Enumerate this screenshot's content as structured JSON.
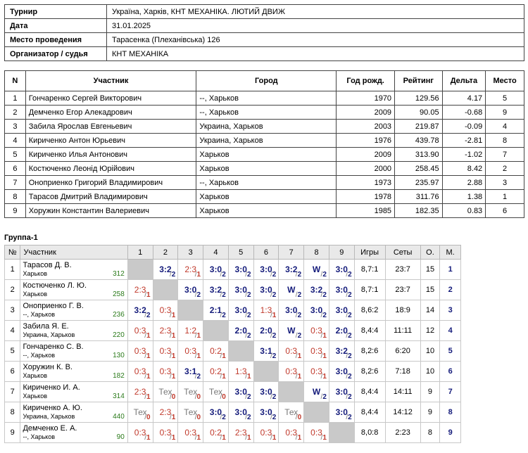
{
  "info": [
    {
      "label": "Турнир",
      "value": "Україна, Харків, КНТ МЕХАНІКА. ЛЮТИЙ ДВИЖ"
    },
    {
      "label": "Дата",
      "value": "31.01.2025"
    },
    {
      "label": "Место проведения",
      "value": "Тарасенка (Плеханівська) 126"
    },
    {
      "label": "Организатор / судья",
      "value": "КНТ МЕХАНІКА"
    }
  ],
  "participants_headers": [
    "N",
    "Участник",
    "Город",
    "Год рожд.",
    "Рейтинг",
    "Дельта",
    "Место"
  ],
  "participants": [
    {
      "n": "1",
      "name": "Гончаренко Сергей Викторович",
      "city": "--, Харьков",
      "year": "1970",
      "rating": "129.56",
      "delta": "4.17",
      "place": "5"
    },
    {
      "n": "2",
      "name": "Демченко Егор Алекадрович",
      "city": "--, Харьков",
      "year": "2009",
      "rating": "90.05",
      "delta": "-0.68",
      "place": "9"
    },
    {
      "n": "3",
      "name": "Забила Ярослав Евгеньевич",
      "city": "Украина, Харьков",
      "year": "2003",
      "rating": "219.87",
      "delta": "-0.09",
      "place": "4"
    },
    {
      "n": "4",
      "name": "Кириченко Антон Юрьевич",
      "city": "Украина, Харьков",
      "year": "1976",
      "rating": "439.78",
      "delta": "-2.81",
      "place": "8"
    },
    {
      "n": "5",
      "name": "Кириченко Илья Антонович",
      "city": "Харьков",
      "year": "2009",
      "rating": "313.90",
      "delta": "-1.02",
      "place": "7"
    },
    {
      "n": "6",
      "name": "Костюченко Леонід Юрійович",
      "city": "Харьков",
      "year": "2000",
      "rating": "258.45",
      "delta": "8.42",
      "place": "2"
    },
    {
      "n": "7",
      "name": "Оноприенко Григорий Владимирович",
      "city": "--, Харьков",
      "year": "1973",
      "rating": "235.97",
      "delta": "2.88",
      "place": "3"
    },
    {
      "n": "8",
      "name": "Тарасов Дмитрий Владимирович",
      "city": "Харьков",
      "year": "1978",
      "rating": "311.76",
      "delta": "1.38",
      "place": "1"
    },
    {
      "n": "9",
      "name": "Хоружин Константин Валериевич",
      "city": "Харьков",
      "year": "1985",
      "rating": "182.35",
      "delta": "0.83",
      "place": "6"
    }
  ],
  "group_title": "Группа-1",
  "grid_headers": {
    "no": "№",
    "participant": "Участник",
    "cols": [
      "1",
      "2",
      "3",
      "4",
      "5",
      "6",
      "7",
      "8",
      "9"
    ],
    "games": "Игры",
    "sets": "Сеты",
    "points": "О.",
    "place": "М."
  },
  "grid_rows": [
    {
      "no": "1",
      "name": "Тарасов Д. В.",
      "city": "Харьков",
      "rating": "312",
      "games": "8,7:1",
      "sets": "23:7",
      "points": "15",
      "place": "1",
      "cells": [
        null,
        [
          "3:2",
          "2"
        ],
        [
          "2:3",
          "1"
        ],
        [
          "3:0",
          "2"
        ],
        [
          "3:0",
          "2"
        ],
        [
          "3:0",
          "2"
        ],
        [
          "3:2",
          "2"
        ],
        [
          "W",
          "2"
        ],
        [
          "3:0",
          "2"
        ]
      ]
    },
    {
      "no": "2",
      "name": "Костюченко Л. Ю.",
      "city": "Харьков",
      "rating": "258",
      "games": "8,7:1",
      "sets": "23:7",
      "points": "15",
      "place": "2",
      "cells": [
        [
          "2:3",
          "1"
        ],
        null,
        [
          "3:0",
          "2"
        ],
        [
          "3:2",
          "2"
        ],
        [
          "3:0",
          "2"
        ],
        [
          "3:0",
          "2"
        ],
        [
          "W",
          "2"
        ],
        [
          "3:2",
          "2"
        ],
        [
          "3:0",
          "2"
        ]
      ]
    },
    {
      "no": "3",
      "name": "Оноприенко Г. В.",
      "city": "--, Харьков",
      "rating": "236",
      "games": "8,6:2",
      "sets": "18:9",
      "points": "14",
      "place": "3",
      "cells": [
        [
          "3:2",
          "2"
        ],
        [
          "0:3",
          "1"
        ],
        null,
        [
          "2:1",
          "2"
        ],
        [
          "3:0",
          "2"
        ],
        [
          "1:3",
          "1"
        ],
        [
          "3:0",
          "2"
        ],
        [
          "3:0",
          "2"
        ],
        [
          "3:0",
          "2"
        ]
      ]
    },
    {
      "no": "4",
      "name": "Забила Я. Е.",
      "city": "Украина, Харьков",
      "rating": "220",
      "games": "8,4:4",
      "sets": "11:11",
      "points": "12",
      "place": "4",
      "cells": [
        [
          "0:3",
          "1"
        ],
        [
          "2:3",
          "1"
        ],
        [
          "1:2",
          "1"
        ],
        null,
        [
          "2:0",
          "2"
        ],
        [
          "2:0",
          "2"
        ],
        [
          "W",
          "2"
        ],
        [
          "0:3",
          "1"
        ],
        [
          "2:0",
          "2"
        ]
      ]
    },
    {
      "no": "5",
      "name": "Гончаренко С. В.",
      "city": "--, Харьков",
      "rating": "130",
      "games": "8,2:6",
      "sets": "6:20",
      "points": "10",
      "place": "5",
      "cells": [
        [
          "0:3",
          "1"
        ],
        [
          "0:3",
          "1"
        ],
        [
          "0:3",
          "1"
        ],
        [
          "0:2",
          "1"
        ],
        null,
        [
          "3:1",
          "2"
        ],
        [
          "0:3",
          "1"
        ],
        [
          "0:3",
          "1"
        ],
        [
          "3:2",
          "2"
        ]
      ]
    },
    {
      "no": "6",
      "name": "Хоружин К. В.",
      "city": "Харьков",
      "rating": "182",
      "games": "8,2:6",
      "sets": "7:18",
      "points": "10",
      "place": "6",
      "cells": [
        [
          "0:3",
          "1"
        ],
        [
          "0:3",
          "1"
        ],
        [
          "3:1",
          "2"
        ],
        [
          "0:2",
          "1"
        ],
        [
          "1:3",
          "1"
        ],
        null,
        [
          "0:3",
          "1"
        ],
        [
          "0:3",
          "1"
        ],
        [
          "3:0",
          "2"
        ]
      ]
    },
    {
      "no": "7",
      "name": "Кириченко И. А.",
      "city": "Харьков",
      "rating": "314",
      "games": "8,4:4",
      "sets": "14:11",
      "points": "9",
      "place": "7",
      "cells": [
        [
          "2:3",
          "1"
        ],
        [
          "Тех",
          "0"
        ],
        [
          "Тех",
          "0"
        ],
        [
          "Тех",
          "0"
        ],
        [
          "3:0",
          "2"
        ],
        [
          "3:0",
          "2"
        ],
        null,
        [
          "W",
          "2"
        ],
        [
          "3:0",
          "2"
        ]
      ]
    },
    {
      "no": "8",
      "name": "Кириченко А. Ю.",
      "city": "Украина, Харьков",
      "rating": "440",
      "games": "8,4:4",
      "sets": "14:12",
      "points": "9",
      "place": "8",
      "cells": [
        [
          "Тех",
          "0"
        ],
        [
          "2:3",
          "1"
        ],
        [
          "Тех",
          "0"
        ],
        [
          "3:0",
          "2"
        ],
        [
          "3:0",
          "2"
        ],
        [
          "3:0",
          "2"
        ],
        [
          "Тех",
          "0"
        ],
        null,
        [
          "3:0",
          "2"
        ]
      ]
    },
    {
      "no": "9",
      "name": "Демченко Е. А.",
      "city": "--, Харьков",
      "rating": "90",
      "games": "8,0:8",
      "sets": "2:23",
      "points": "8",
      "place": "9",
      "cells": [
        [
          "0:3",
          "1"
        ],
        [
          "0:3",
          "1"
        ],
        [
          "0:3",
          "1"
        ],
        [
          "0:2",
          "1"
        ],
        [
          "2:3",
          "1"
        ],
        [
          "0:3",
          "1"
        ],
        [
          "0:3",
          "1"
        ],
        [
          "0:3",
          "1"
        ],
        null
      ]
    }
  ]
}
